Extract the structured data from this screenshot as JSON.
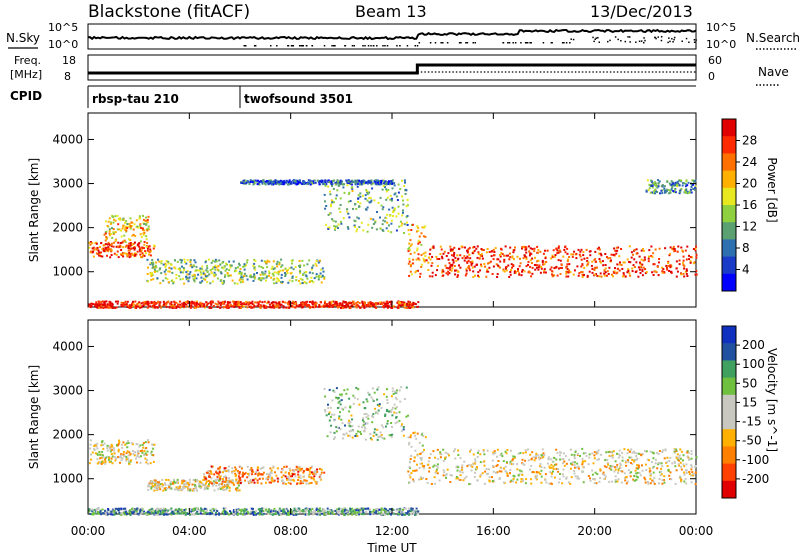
{
  "header": {
    "station": "Blackstone (fitACF)",
    "beam": "Beam 13",
    "date": "13/Dec/2013"
  },
  "top_panels": {
    "nsky_label": "N.Sky",
    "nsky_ticks": [
      "10^5",
      "10^0"
    ],
    "nsearch_label": "N.Search",
    "freq_label_1": "Freq.",
    "freq_label_2": "[MHz]",
    "freq_ticks": [
      "18",
      "8"
    ],
    "nave_label": "Nave",
    "nave_ticks": [
      "60",
      "0"
    ],
    "cpid_label": "CPID",
    "cpid_modes": [
      {
        "name": "rbsp-tau 210",
        "start_hour": 0
      },
      {
        "name": "twofsound 3501",
        "start_hour": 6
      }
    ]
  },
  "x_axis": {
    "label": "Time UT",
    "ticks": [
      "00:00",
      "04:00",
      "08:00",
      "12:00",
      "16:00",
      "20:00",
      "00:00"
    ]
  },
  "chart_data": [
    {
      "type": "heatmap",
      "quantity": "power",
      "ylabel": "Slant Range [km]",
      "ylim": [
        200,
        4600
      ],
      "y_ticks": [
        1000,
        2000,
        3000,
        4000
      ],
      "xlim_hours": [
        0,
        24
      ],
      "colorbar": {
        "label": "Power [dB]",
        "ticks": [
          "28",
          "24",
          "20",
          "16",
          "12",
          "8",
          "4"
        ],
        "colors": [
          "#0000ff",
          "#1a3ac8",
          "#2e6fb0",
          "#5aa070",
          "#8fd040",
          "#e8e820",
          "#ffb000",
          "#ff7000",
          "#ff2a00",
          "#e00000"
        ]
      },
      "echo_regions": [
        {
          "hours": [
            0.0,
            2.6
          ],
          "range_km": [
            1350,
            1700
          ],
          "level": 0.8
        },
        {
          "hours": [
            0.6,
            2.4
          ],
          "range_km": [
            1700,
            2300
          ],
          "level": 0.6
        },
        {
          "hours": [
            2.3,
            9.3
          ],
          "range_km": [
            750,
            1300
          ],
          "level": 0.45
        },
        {
          "hours": [
            9.3,
            12.6
          ],
          "range_km": [
            1900,
            3100
          ],
          "level": 0.4
        },
        {
          "hours": [
            12.6,
            13.3
          ],
          "range_km": [
            900,
            2100
          ],
          "level": 0.7
        },
        {
          "hours": [
            13.3,
            24.0
          ],
          "range_km": [
            900,
            1600
          ],
          "level": 0.85
        },
        {
          "hours": [
            6.0,
            12.0
          ],
          "range_km": [
            3000,
            3100
          ],
          "level": 0.2
        },
        {
          "hours": [
            22.0,
            24.0
          ],
          "range_km": [
            2800,
            3100
          ],
          "level": 0.3
        },
        {
          "hours": [
            0.0,
            13.0
          ],
          "range_km": [
            200,
            350
          ],
          "level": 0.9
        }
      ]
    },
    {
      "type": "heatmap",
      "quantity": "velocity",
      "ylabel": "Slant Range [km]",
      "ylim": [
        200,
        4600
      ],
      "y_ticks": [
        1000,
        2000,
        3000,
        4000
      ],
      "xlim_hours": [
        0,
        24
      ],
      "colorbar": {
        "label": "Velocity [m s^-1]",
        "ticks": [
          "200",
          "100",
          "50",
          "15",
          "-15",
          "-50",
          "-100",
          "-200"
        ],
        "colors": [
          "#e00000",
          "#ff4000",
          "#ff8000",
          "#ffb000",
          "#c8c8c0",
          "#c8c8c0",
          "#70c040",
          "#40a060",
          "#2050a0",
          "#1030c0"
        ]
      },
      "echo_regions": [
        {
          "hours": [
            0.0,
            2.6
          ],
          "range_km": [
            1350,
            1900
          ],
          "level": 0.45
        },
        {
          "hours": [
            2.3,
            6.0
          ],
          "range_km": [
            750,
            1000
          ],
          "level": 0.45
        },
        {
          "hours": [
            4.5,
            9.3
          ],
          "range_km": [
            900,
            1300
          ],
          "level": 0.3
        },
        {
          "hours": [
            9.3,
            12.6
          ],
          "range_km": [
            1900,
            3100
          ],
          "level": 0.6
        },
        {
          "hours": [
            12.6,
            13.3
          ],
          "range_km": [
            900,
            2100
          ],
          "level": 0.45
        },
        {
          "hours": [
            13.3,
            24.0
          ],
          "range_km": [
            900,
            1700
          ],
          "level": 0.45
        },
        {
          "hours": [
            0.0,
            13.0
          ],
          "range_km": [
            200,
            350
          ],
          "level": 0.7
        }
      ]
    }
  ]
}
